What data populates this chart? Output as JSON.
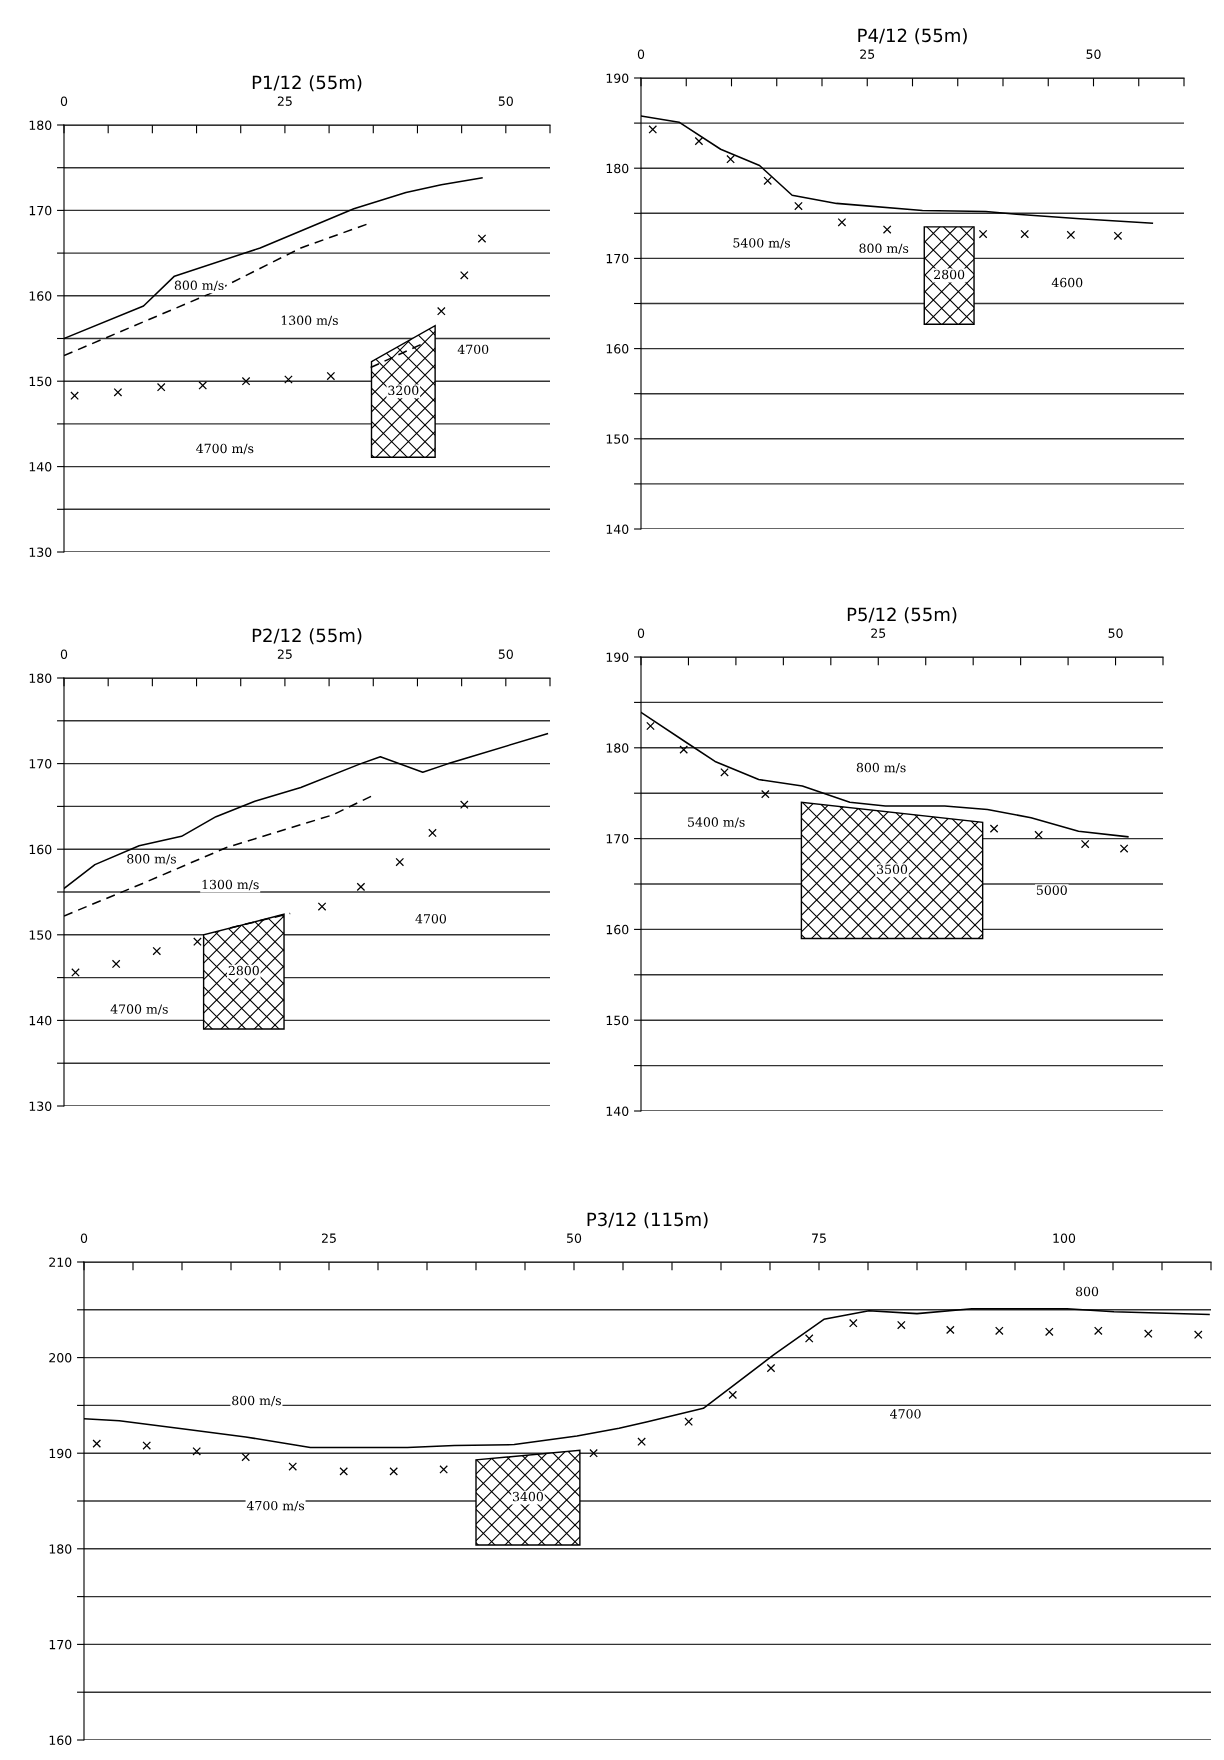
{
  "chart_data": [
    {
      "type": "line",
      "title": "P1/12 (55m)",
      "xlim": [
        0,
        55
      ],
      "ylim": [
        130,
        180
      ],
      "grid": "y",
      "xticks": [
        0,
        {
          "value": 5,
          "label": null
        },
        {
          "value": 10,
          "label": null
        },
        {
          "value": 15,
          "label": null
        },
        {
          "value": 20,
          "label": null
        },
        25,
        {
          "value": 30,
          "label": null
        },
        {
          "value": 35,
          "label": null
        },
        {
          "value": 40,
          "label": null
        },
        {
          "value": 45,
          "label": null
        },
        50,
        {
          "value": 55,
          "label": null
        }
      ],
      "yticks": [
        130,
        {
          "value": 135,
          "label": null
        },
        140,
        {
          "value": 145,
          "label": null
        },
        150,
        {
          "value": 155,
          "label": null
        },
        160,
        {
          "value": 165,
          "label": null
        },
        170,
        {
          "value": 175,
          "label": null
        },
        180
      ],
      "series": [
        {
          "line_style": "solid",
          "color": "#000000",
          "x": [
            0,
            9,
            12.5,
            22.2,
            32.8,
            38.7,
            42.7,
            47.3
          ],
          "values": [
            155.0,
            158.8,
            162.3,
            165.6,
            170.2,
            172.1,
            173.0,
            173.8
          ]
        },
        {
          "line_style": "dashed",
          "color": "#000000",
          "x": [
            0,
            16.4,
            26.8,
            34.6
          ],
          "values": [
            153.0,
            160.2,
            165.6,
            168.5
          ]
        },
        {
          "line_style": "dashed",
          "color": "#000000",
          "x": [
            34.7,
            40.4
          ],
          "values": [
            151.6,
            154.3
          ]
        },
        {
          "type": "scatter",
          "marker": "cross",
          "color": "#000000",
          "x": [
            1.2,
            6.1,
            11,
            15.7,
            20.6,
            25.4,
            30.2,
            42.7,
            45.3,
            47.3
          ],
          "values": [
            148.3,
            148.7,
            149.3,
            149.5,
            150.0,
            150.2,
            150.6,
            158.2,
            162.4,
            166.7
          ]
        },
        {
          "type": "area",
          "name": "3200",
          "color": "#000000",
          "x": [
            34.8,
            34.8,
            42.0,
            42.0
          ],
          "values": [
            141.1,
            152.3,
            156.5,
            141.1
          ]
        }
      ],
      "annotations": [
        "800 m/s",
        "1300 m/s",
        "4700",
        "4700 m/s"
      ]
    },
    {
      "type": "line",
      "title": "P4/12 (55m)",
      "xlim": [
        0,
        60
      ],
      "ylim": [
        140,
        190
      ],
      "grid": "y",
      "xticks": [
        0,
        {
          "value": 5,
          "label": null
        },
        {
          "value": 10,
          "label": null
        },
        {
          "value": 15,
          "label": null
        },
        {
          "value": 20,
          "label": null
        },
        25,
        {
          "value": 30,
          "label": null
        },
        {
          "value": 35,
          "label": null
        },
        {
          "value": 40,
          "label": null
        },
        {
          "value": 45,
          "label": null
        },
        50,
        {
          "value": 55,
          "label": null
        },
        {
          "value": 60,
          "label": null
        }
      ],
      "yticks": [
        140,
        {
          "value": 145,
          "label": null
        },
        150,
        {
          "value": 155,
          "label": null
        },
        160,
        {
          "value": 165,
          "label": null
        },
        170,
        {
          "value": 175,
          "label": null
        },
        180,
        {
          "value": 185,
          "label": null
        },
        190
      ],
      "series": [
        {
          "line_style": "solid",
          "color": "#000000",
          "x": [
            0,
            4.2,
            8.8,
            13.1,
            16.7,
            21.6,
            31.1,
            38.1,
            41.5,
            48.5,
            56.5
          ],
          "values": [
            185.8,
            185.1,
            182.1,
            180.3,
            177.0,
            176.1,
            175.3,
            175.2,
            174.9,
            174.4,
            173.9
          ]
        },
        {
          "type": "scatter",
          "marker": "cross",
          "color": "#000000",
          "x": [
            1.3,
            6.4,
            9.9,
            14,
            17.4,
            22.2,
            27.2,
            37.8,
            42.4,
            47.5,
            52.7
          ],
          "values": [
            184.3,
            183.0,
            181.0,
            178.6,
            175.8,
            174.0,
            173.2,
            172.7,
            172.7,
            172.6,
            172.5
          ]
        },
        {
          "type": "area",
          "name": "2800",
          "color": "#000000",
          "x": [
            31.3,
            31.3,
            36.8,
            36.8
          ],
          "values": [
            162.7,
            173.5,
            173.5,
            162.7
          ]
        }
      ],
      "annotations": [
        "800 m/s",
        "5400 m/s",
        "4600"
      ]
    },
    {
      "type": "line",
      "title": "P2/12 (55m)",
      "xlim": [
        0,
        55
      ],
      "ylim": [
        130,
        180
      ],
      "grid": "y",
      "xticks": [
        0,
        {
          "value": 5,
          "label": null
        },
        {
          "value": 10,
          "label": null
        },
        {
          "value": 15,
          "label": null
        },
        {
          "value": 20,
          "label": null
        },
        25,
        {
          "value": 30,
          "label": null
        },
        {
          "value": 35,
          "label": null
        },
        {
          "value": 40,
          "label": null
        },
        {
          "value": 45,
          "label": null
        },
        50,
        {
          "value": 55,
          "label": null
        }
      ],
      "yticks": [
        130,
        {
          "value": 135,
          "label": null
        },
        140,
        {
          "value": 145,
          "label": null
        },
        150,
        {
          "value": 155,
          "label": null
        },
        160,
        {
          "value": 165,
          "label": null
        },
        170,
        {
          "value": 175,
          "label": null
        },
        180
      ],
      "series": [
        {
          "line_style": "solid",
          "color": "#000000",
          "x": [
            0,
            3.5,
            8.5,
            13.3,
            17.2,
            21.6,
            26.8,
            33.6,
            35.8,
            40.6,
            43.5,
            54.7
          ],
          "values": [
            155.4,
            158.2,
            160.4,
            161.5,
            163.8,
            165.6,
            167.2,
            170.0,
            170.8,
            169.0,
            170.0,
            173.5
          ]
        },
        {
          "line_style": "dashed",
          "color": "#000000",
          "x": [
            0,
            8.9,
            18.4,
            30.4,
            35
          ],
          "values": [
            152.2,
            156.0,
            160.2,
            164.0,
            166.3
          ]
        },
        {
          "line_style": "dashed",
          "color": "#000000",
          "x": [
            18.8,
            25.6
          ],
          "values": [
            150.8,
            152.5
          ]
        },
        {
          "type": "scatter",
          "marker": "cross",
          "color": "#000000",
          "x": [
            1.3,
            5.9,
            10.5,
            15.1,
            29.2,
            33.6,
            38,
            41.7,
            45.3
          ],
          "values": [
            145.6,
            146.6,
            148.1,
            149.2,
            153.3,
            155.6,
            158.5,
            161.9,
            165.2
          ]
        },
        {
          "type": "area",
          "name": "2800",
          "color": "#000000",
          "x": [
            15.8,
            15.8,
            24.9,
            24.9
          ],
          "values": [
            139.0,
            150.0,
            152.4,
            139.0
          ]
        }
      ],
      "annotations": [
        "800 m/s",
        "1300 m/s",
        "4700",
        "4700 m/s"
      ]
    },
    {
      "type": "line",
      "title": "P5/12 (55m)",
      "xlim": [
        0,
        55
      ],
      "ylim": [
        140,
        190
      ],
      "grid": "y",
      "xticks": [
        0,
        {
          "value": 5,
          "label": null
        },
        {
          "value": 10,
          "label": null
        },
        {
          "value": 15,
          "label": null
        },
        {
          "value": 20,
          "label": null
        },
        25,
        {
          "value": 30,
          "label": null
        },
        {
          "value": 35,
          "label": null
        },
        {
          "value": 40,
          "label": null
        },
        {
          "value": 45,
          "label": null
        },
        50,
        {
          "value": 55,
          "label": null
        }
      ],
      "yticks": [
        140,
        {
          "value": 145,
          "label": null
        },
        150,
        {
          "value": 155,
          "label": null
        },
        160,
        {
          "value": 165,
          "label": null
        },
        170,
        {
          "value": 175,
          "label": null
        },
        180,
        {
          "value": 185,
          "label": null
        },
        190
      ],
      "series": [
        {
          "line_style": "solid",
          "color": "#000000",
          "x": [
            0,
            4.9,
            7.8,
            12.4,
            17,
            22,
            25.75,
            32,
            36.5,
            41.1,
            46.1,
            51.3
          ],
          "values": [
            183.9,
            180.5,
            178.5,
            176.5,
            175.8,
            174.0,
            173.6,
            173.6,
            173.2,
            172.3,
            170.8,
            170.2
          ]
        },
        {
          "type": "scatter",
          "marker": "cross",
          "color": "#000000",
          "x": [
            1,
            4.5,
            8.8,
            13.1,
            37.2,
            41.9,
            46.8,
            50.9
          ],
          "values": [
            182.4,
            179.8,
            177.3,
            174.9,
            171.1,
            170.4,
            169.4,
            168.9
          ]
        },
        {
          "type": "area",
          "name": "3500",
          "color": "#000000",
          "x": [
            16.9,
            16.9,
            36.0,
            36.0
          ],
          "values": [
            159.0,
            174.0,
            171.8,
            159.0
          ]
        }
      ],
      "annotations": [
        "800 m/s",
        "5400 m/s",
        "5000"
      ]
    },
    {
      "type": "line",
      "title": "P3/12 (115m)",
      "xlim": [
        0,
        115
      ],
      "ylim": [
        160,
        210
      ],
      "grid": "y",
      "xticks": [
        0,
        {
          "value": 5,
          "label": null
        },
        {
          "value": 10,
          "label": null
        },
        {
          "value": 15,
          "label": null
        },
        {
          "value": 20,
          "label": null
        },
        25,
        {
          "value": 30,
          "label": null
        },
        {
          "value": 35,
          "label": null
        },
        {
          "value": 40,
          "label": null
        },
        {
          "value": 45,
          "label": null
        },
        50,
        {
          "value": 55,
          "label": null
        },
        {
          "value": 60,
          "label": null
        },
        {
          "value": 65,
          "label": null
        },
        {
          "value": 70,
          "label": null
        },
        75,
        {
          "value": 80,
          "label": null
        },
        {
          "value": 85,
          "label": null
        },
        {
          "value": 90,
          "label": null
        },
        {
          "value": 95,
          "label": null
        },
        100,
        {
          "value": 105,
          "label": null
        },
        {
          "value": 110,
          "label": null
        },
        {
          "value": 115,
          "label": null
        }
      ],
      "yticks": [
        160,
        {
          "value": 165,
          "label": null
        },
        170,
        {
          "value": 175,
          "label": null
        },
        180,
        {
          "value": 185,
          "label": null
        },
        190,
        {
          "value": 195,
          "label": null
        },
        200,
        {
          "value": 205,
          "label": null
        },
        210
      ],
      "series": [
        {
          "line_style": "solid",
          "color": "#000000",
          "x": [
            0,
            3.6,
            10.4,
            16.5,
            23.1,
            33,
            37.8,
            43.9,
            50.3,
            54.6,
            57.5,
            63.2,
            70.4,
            75.5,
            80.1,
            85,
            90.6,
            100.3,
            105.1,
            114.8
          ],
          "values": [
            193.6,
            193.4,
            192.5,
            191.7,
            190.6,
            190.6,
            190.8,
            190.9,
            191.8,
            192.6,
            193.3,
            194.7,
            200.3,
            204.0,
            204.9,
            204.6,
            205.1,
            205.1,
            204.8,
            204.5
          ]
        },
        {
          "type": "scatter",
          "marker": "cross",
          "color": "#000000",
          "x": [
            1.3,
            6.4,
            11.5,
            16.5,
            21.3,
            26.5,
            31.6,
            36.7,
            52,
            56.9,
            61.7,
            66.2,
            70.1,
            74.0,
            78.5,
            83.4,
            88.4,
            93.4,
            98.5,
            103.5,
            108.6,
            113.7
          ],
          "values": [
            191.0,
            190.8,
            190.2,
            189.6,
            188.6,
            188.1,
            188.1,
            188.3,
            190.0,
            191.2,
            193.3,
            196.1,
            198.9,
            202.0,
            203.6,
            203.4,
            202.9,
            202.8,
            202.7,
            202.8,
            202.5,
            202.4
          ]
        },
        {
          "type": "area",
          "name": "3400",
          "color": "#000000",
          "x": [
            40.0,
            40.0,
            50.6,
            50.6
          ],
          "values": [
            180.4,
            189.3,
            190.3,
            180.4
          ]
        }
      ],
      "annotations": [
        "800 m/s",
        "4700 m/s",
        "800",
        "4700"
      ]
    }
  ]
}
